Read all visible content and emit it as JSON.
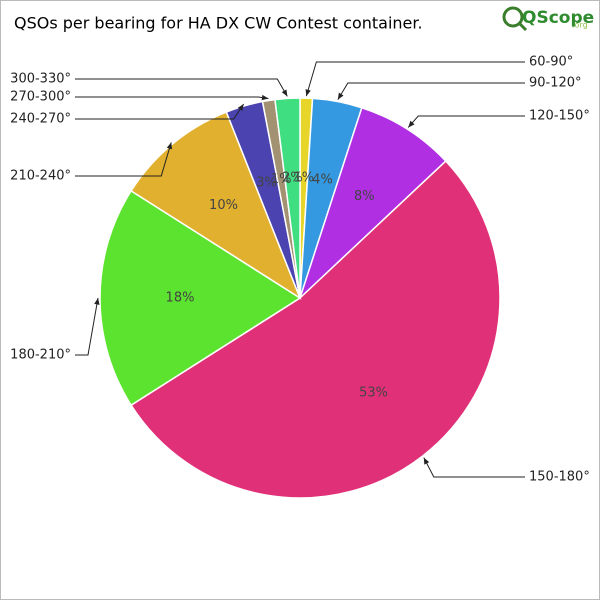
{
  "chart_data": {
    "type": "pie",
    "title": "QSOs per bearing for HA DX CW Contest container.",
    "logo": {
      "text": "QScope",
      "suffix": ".org"
    },
    "categories": [
      "60-90°",
      "90-120°",
      "120-150°",
      "150-180°",
      "180-210°",
      "210-240°",
      "240-270°",
      "270-300°",
      "300-330°"
    ],
    "values": [
      1,
      4,
      8,
      53,
      18,
      10,
      3,
      1,
      2
    ],
    "value_labels": [
      "1%",
      "4%",
      "8%",
      "53%",
      "18%",
      "10%",
      "3%",
      "1%",
      "2%"
    ],
    "colors": [
      "#e8d52a",
      "#3499e0",
      "#b02fe3",
      "#e03077",
      "#5ce32f",
      "#e2b02f",
      "#4a43b0",
      "#a39272",
      "#3fde80"
    ]
  }
}
